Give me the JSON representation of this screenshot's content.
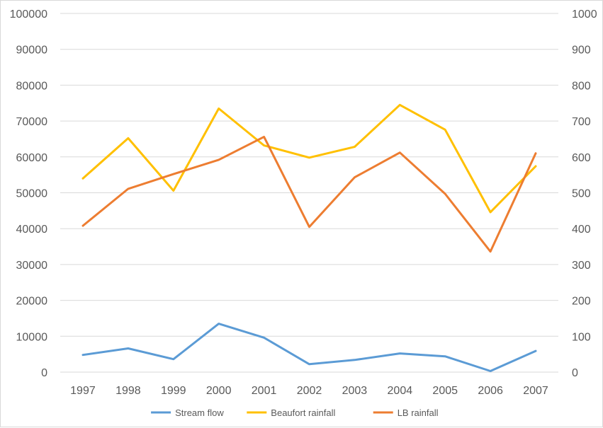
{
  "chart_data": {
    "type": "line",
    "categories": [
      "1997",
      "1998",
      "1999",
      "2000",
      "2001",
      "2002",
      "2003",
      "2004",
      "2005",
      "2006",
      "2007"
    ],
    "y_left": {
      "ylim": [
        0,
        100000
      ],
      "ticks": [
        0,
        10000,
        20000,
        30000,
        40000,
        50000,
        60000,
        70000,
        80000,
        90000,
        100000
      ]
    },
    "y_right": {
      "ylim": [
        0,
        1000
      ],
      "ticks": [
        0,
        100,
        200,
        300,
        400,
        500,
        600,
        700,
        800,
        900,
        1000
      ]
    },
    "grid": true,
    "legend": {
      "placement": "bottom"
    },
    "series": [
      {
        "name": "Stream flow",
        "axis": "left",
        "color": "#5b9bd5",
        "values": [
          4800,
          6600,
          3600,
          13500,
          9600,
          2200,
          3400,
          5200,
          4400,
          300,
          5900
        ]
      },
      {
        "name": "Beaufort rainfall",
        "axis": "right",
        "color": "#ffc000",
        "values": [
          540,
          652,
          506,
          735,
          632,
          598,
          628,
          745,
          676,
          446,
          574
        ]
      },
      {
        "name": "LB rainfall",
        "axis": "right",
        "color": "#ed7d31",
        "values": [
          408,
          511,
          552,
          592,
          656,
          405,
          543,
          612,
          497,
          336,
          610
        ]
      }
    ]
  }
}
